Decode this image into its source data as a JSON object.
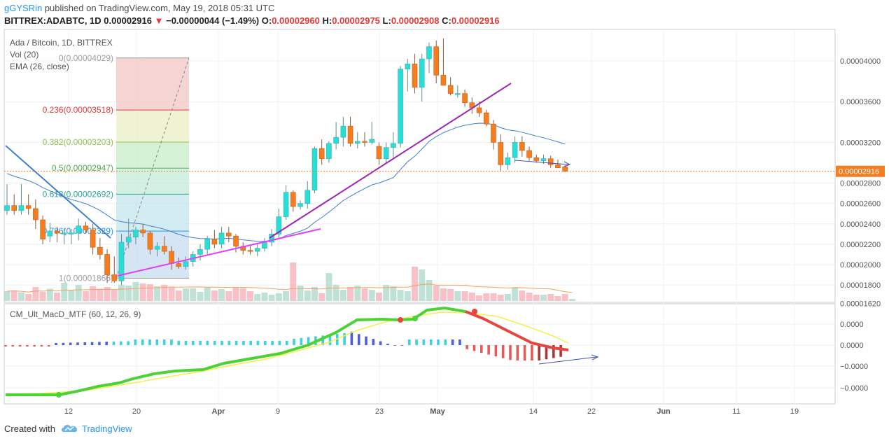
{
  "header": {
    "user": "gGYSRin",
    "published": "published on TradingView.com, May 19, 2018 05:31 UTC",
    "symbol": "BITTREX:ADABTC, 1D",
    "last": "0.00002916",
    "arrow": "▼",
    "change": "−0.00000044 (−1.49%)",
    "o_label": "O:",
    "o_val": "0.00002960",
    "h_label": "H:",
    "h_val": "0.00002975",
    "l_label": "L:",
    "l_val": "0.00002908",
    "c_label": "C:",
    "c_val": "0.00002916"
  },
  "legends": {
    "main": "Ada / Bitcoin, 1D, BITTREX",
    "vol": "Vol (20)",
    "ema": "EMA (26, close)",
    "macd": "CM_Ult_MacD_MTF (60, 12, 26, 9)"
  },
  "footer": {
    "created": "Created with",
    "brand": "TradingView"
  },
  "colors": {
    "up": "#26e0d8",
    "down": "#f57c1f",
    "ema": "#3f7fd0",
    "trend": "#9c27b0",
    "macd_green": "#4cd137",
    "macd_red": "#e8453c",
    "signal": "#f5f048"
  },
  "chart_data": {
    "type": "candlestick",
    "title": "Ada / Bitcoin, 1D, BITTREX",
    "price_axis": {
      "labels": [
        "0.00004000",
        "0.00003600",
        "0.00003200",
        "0.00002800",
        "0.00002600",
        "0.00002400",
        "0.00002200",
        "0.00002000",
        "0.00001800",
        "0.00001620"
      ],
      "ylim": [
        1.6e-05,
        4.28e-05
      ]
    },
    "current_price": "0.00002916",
    "x_ticks": [
      "12",
      "20",
      "Apr",
      "9",
      "23",
      "May",
      "14",
      "22",
      "Jun",
      "11",
      "19"
    ],
    "fibonacci": [
      {
        "level": "0",
        "price": "0.00004029",
        "text": "0(0.00004029)"
      },
      {
        "level": "0.236",
        "price": "0.00003518",
        "text": "0.236(0.00003518)"
      },
      {
        "level": "0.382",
        "price": "0.00003203",
        "text": "0.382(0.00003203)"
      },
      {
        "level": "0.5",
        "price": "0.00002947",
        "text": "0.5(0.00002947)"
      },
      {
        "level": "0.618",
        "price": "0.00002692",
        "text": "0.618(0.00002692)"
      },
      {
        "level": "0.786",
        "price": "0.00002329",
        "text": "0.786(0.00002329)"
      },
      {
        "level": "1",
        "price": "0.00001866",
        "text": "1(0.00001866)"
      }
    ],
    "candles": [
      {
        "o": 2.53,
        "h": 2.79,
        "l": 2.49,
        "c": 2.58
      },
      {
        "o": 2.58,
        "h": 2.69,
        "l": 2.49,
        "c": 2.53
      },
      {
        "o": 2.53,
        "h": 2.79,
        "l": 2.49,
        "c": 2.58
      },
      {
        "o": 2.58,
        "h": 2.69,
        "l": 2.49,
        "c": 2.55
      },
      {
        "o": 2.55,
        "h": 2.64,
        "l": 2.35,
        "c": 2.44
      },
      {
        "o": 2.44,
        "h": 2.48,
        "l": 2.2,
        "c": 2.25
      },
      {
        "o": 2.28,
        "h": 2.41,
        "l": 2.22,
        "c": 2.33
      },
      {
        "o": 2.33,
        "h": 2.37,
        "l": 2.22,
        "c": 2.31
      },
      {
        "o": 2.31,
        "h": 2.36,
        "l": 2.2,
        "c": 2.31
      },
      {
        "o": 2.31,
        "h": 2.35,
        "l": 2.2,
        "c": 2.31
      },
      {
        "o": 2.31,
        "h": 2.45,
        "l": 2.24,
        "c": 2.38
      },
      {
        "o": 2.38,
        "h": 2.42,
        "l": 2.31,
        "c": 2.34
      },
      {
        "o": 2.34,
        "h": 2.4,
        "l": 2.1,
        "c": 2.17
      },
      {
        "o": 2.17,
        "h": 2.26,
        "l": 2.05,
        "c": 2.1
      },
      {
        "o": 2.1,
        "h": 2.15,
        "l": 1.82,
        "c": 1.9
      },
      {
        "o": 1.9,
        "h": 2.08,
        "l": 1.82,
        "c": 1.84
      },
      {
        "o": 1.84,
        "h": 2.3,
        "l": 1.8,
        "c": 2.22
      },
      {
        "o": 2.22,
        "h": 2.45,
        "l": 2.16,
        "c": 2.27
      },
      {
        "o": 2.27,
        "h": 2.37,
        "l": 2.2,
        "c": 2.34
      },
      {
        "o": 2.34,
        "h": 2.4,
        "l": 2.27,
        "c": 2.31
      },
      {
        "o": 2.31,
        "h": 2.33,
        "l": 2.1,
        "c": 2.15
      },
      {
        "o": 2.15,
        "h": 2.22,
        "l": 2.08,
        "c": 2.18
      },
      {
        "o": 2.18,
        "h": 2.28,
        "l": 2.1,
        "c": 2.13
      },
      {
        "o": 2.13,
        "h": 2.18,
        "l": 1.95,
        "c": 2.01
      },
      {
        "o": 2.01,
        "h": 2.07,
        "l": 1.96,
        "c": 1.98
      },
      {
        "o": 1.98,
        "h": 2.08,
        "l": 1.95,
        "c": 2.03
      },
      {
        "o": 2.03,
        "h": 2.13,
        "l": 1.98,
        "c": 2.1
      },
      {
        "o": 2.1,
        "h": 2.2,
        "l": 2.04,
        "c": 2.15
      },
      {
        "o": 2.15,
        "h": 2.28,
        "l": 2.1,
        "c": 2.25
      },
      {
        "o": 2.25,
        "h": 2.34,
        "l": 2.16,
        "c": 2.2
      },
      {
        "o": 2.2,
        "h": 2.37,
        "l": 2.16,
        "c": 2.31
      },
      {
        "o": 2.31,
        "h": 2.37,
        "l": 2.22,
        "c": 2.28
      },
      {
        "o": 2.28,
        "h": 2.3,
        "l": 2.12,
        "c": 2.18
      },
      {
        "o": 2.18,
        "h": 2.22,
        "l": 2.1,
        "c": 2.14
      },
      {
        "o": 2.14,
        "h": 2.18,
        "l": 2.1,
        "c": 2.13
      },
      {
        "o": 2.13,
        "h": 2.2,
        "l": 2.08,
        "c": 2.16
      },
      {
        "o": 2.16,
        "h": 2.26,
        "l": 2.13,
        "c": 2.22
      },
      {
        "o": 2.22,
        "h": 2.35,
        "l": 2.18,
        "c": 2.3
      },
      {
        "o": 2.3,
        "h": 2.55,
        "l": 2.26,
        "c": 2.47
      },
      {
        "o": 2.47,
        "h": 2.78,
        "l": 2.44,
        "c": 2.71
      },
      {
        "o": 2.71,
        "h": 2.73,
        "l": 2.52,
        "c": 2.57
      },
      {
        "o": 2.57,
        "h": 2.63,
        "l": 2.54,
        "c": 2.6
      },
      {
        "o": 2.6,
        "h": 2.82,
        "l": 2.55,
        "c": 2.73
      },
      {
        "o": 2.73,
        "h": 3.16,
        "l": 2.7,
        "c": 3.14
      },
      {
        "o": 3.14,
        "h": 3.23,
        "l": 2.98,
        "c": 3.04
      },
      {
        "o": 3.04,
        "h": 3.21,
        "l": 3.0,
        "c": 3.19
      },
      {
        "o": 3.19,
        "h": 3.4,
        "l": 3.13,
        "c": 3.25
      },
      {
        "o": 3.25,
        "h": 3.45,
        "l": 3.16,
        "c": 3.36
      },
      {
        "o": 3.36,
        "h": 3.45,
        "l": 3.16,
        "c": 3.19
      },
      {
        "o": 3.19,
        "h": 3.3,
        "l": 3.14,
        "c": 3.21
      },
      {
        "o": 3.21,
        "h": 3.3,
        "l": 3.16,
        "c": 3.2
      },
      {
        "o": 3.2,
        "h": 3.4,
        "l": 3.18,
        "c": 3.23
      },
      {
        "o": 3.16,
        "h": 3.2,
        "l": 2.98,
        "c": 3.04
      },
      {
        "o": 3.04,
        "h": 3.2,
        "l": 3.0,
        "c": 3.15
      },
      {
        "o": 3.15,
        "h": 3.3,
        "l": 3.05,
        "c": 3.19
      },
      {
        "o": 3.19,
        "h": 3.95,
        "l": 3.15,
        "c": 3.92
      },
      {
        "o": 3.92,
        "h": 4.02,
        "l": 3.7,
        "c": 3.97
      },
      {
        "o": 3.97,
        "h": 4.07,
        "l": 3.68,
        "c": 3.74
      },
      {
        "o": 3.74,
        "h": 4.07,
        "l": 3.6,
        "c": 4.02
      },
      {
        "o": 4.02,
        "h": 4.18,
        "l": 3.88,
        "c": 4.14
      },
      {
        "o": 4.14,
        "h": 4.2,
        "l": 3.78,
        "c": 3.86
      },
      {
        "o": 3.86,
        "h": 4.22,
        "l": 3.76,
        "c": 3.76
      },
      {
        "o": 3.76,
        "h": 3.84,
        "l": 3.66,
        "c": 3.68
      },
      {
        "o": 3.68,
        "h": 3.76,
        "l": 3.64,
        "c": 3.68
      },
      {
        "o": 3.68,
        "h": 3.72,
        "l": 3.55,
        "c": 3.59
      },
      {
        "o": 3.59,
        "h": 3.64,
        "l": 3.48,
        "c": 3.54
      },
      {
        "o": 3.54,
        "h": 3.6,
        "l": 3.45,
        "c": 3.49
      },
      {
        "o": 3.49,
        "h": 3.52,
        "l": 3.36,
        "c": 3.38
      },
      {
        "o": 3.38,
        "h": 3.42,
        "l": 3.13,
        "c": 3.2
      },
      {
        "o": 3.2,
        "h": 3.28,
        "l": 2.92,
        "c": 2.98
      },
      {
        "o": 2.98,
        "h": 3.1,
        "l": 2.93,
        "c": 3.05
      },
      {
        "o": 3.05,
        "h": 3.26,
        "l": 3.0,
        "c": 3.2
      },
      {
        "o": 3.2,
        "h": 3.26,
        "l": 3.06,
        "c": 3.12
      },
      {
        "o": 3.12,
        "h": 3.16,
        "l": 3.02,
        "c": 3.05
      },
      {
        "o": 3.05,
        "h": 3.08,
        "l": 3.0,
        "c": 3.02
      },
      {
        "o": 3.02,
        "h": 3.08,
        "l": 2.99,
        "c": 3.04
      },
      {
        "o": 3.04,
        "h": 3.07,
        "l": 2.95,
        "c": 2.98
      },
      {
        "o": 2.98,
        "h": 3.03,
        "l": 2.95,
        "c": 2.95
      },
      {
        "o": 2.96,
        "h": 2.975,
        "l": 2.908,
        "c": 2.916
      }
    ],
    "volume": [
      28,
      30,
      25,
      20,
      40,
      26,
      35,
      24,
      52,
      30,
      46,
      28,
      42,
      35,
      40,
      32,
      46,
      44,
      54,
      50,
      48,
      42,
      46,
      40,
      30,
      36,
      36,
      26,
      40,
      30,
      34,
      28,
      40,
      36,
      28,
      20,
      24,
      18,
      22,
      28,
      110,
      44,
      30,
      40,
      22,
      80,
      46,
      32,
      40,
      44,
      36,
      32,
      24,
      46,
      42,
      32,
      28,
      98,
      90,
      60,
      44,
      36,
      34,
      28,
      28,
      24,
      16,
      22,
      22,
      18,
      20,
      40,
      30,
      24,
      18,
      18,
      20,
      14,
      20,
      6
    ],
    "ema26_start": 2.92,
    "macd_series": [
      "macd",
      "signal",
      "histogram"
    ]
  }
}
